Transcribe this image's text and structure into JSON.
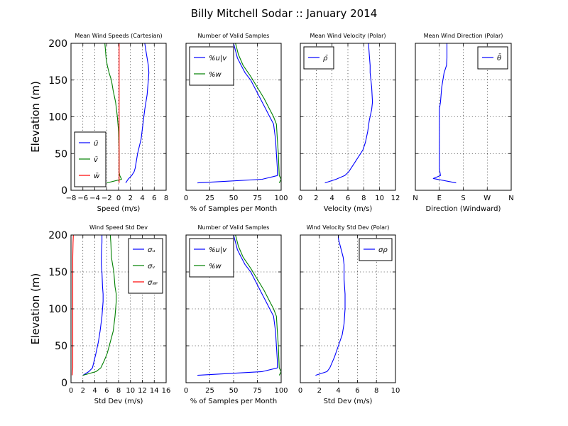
{
  "figure": {
    "suptitle": "Billy Mitchell Sodar :: January 2014"
  },
  "colors": {
    "blue": "#0000ff",
    "green": "#008000",
    "red": "#ff0000"
  },
  "chart_data": [
    {
      "type": "line",
      "title": "Mean Wind Speeds (Cartesian)",
      "xlabel": "Speed (m/s)",
      "ylabel": "Elevation (m)",
      "xlim": [
        -8,
        8
      ],
      "ylim": [
        0,
        200
      ],
      "xticks": [
        -8,
        -6,
        -4,
        -2,
        0,
        2,
        4,
        6,
        8
      ],
      "xticklabels": [
        "−8",
        "−6",
        "−4",
        "−2",
        "0",
        "2",
        "4",
        "6",
        "8"
      ],
      "yticks": [
        0,
        50,
        100,
        150,
        200
      ],
      "yticklabels": [
        "0",
        "50",
        "100",
        "150",
        "200"
      ],
      "grid": true,
      "legend_loc": "lower-left",
      "series": [
        {
          "name": "ū",
          "color": "#0000ff",
          "x": [
            1.2,
            1.6,
            2.2,
            2.6,
            2.8,
            3.0,
            3.2,
            3.5,
            3.8,
            4.1,
            4.4,
            4.8,
            5.0,
            5.1,
            5.0,
            4.8,
            4.6,
            4.4
          ],
          "y": [
            10,
            15,
            20,
            25,
            30,
            40,
            50,
            60,
            70,
            90,
            110,
            130,
            150,
            160,
            170,
            180,
            190,
            200
          ]
        },
        {
          "name": "v̄",
          "color": "#008000",
          "x": [
            -2.0,
            0.5,
            0.2,
            0.1,
            0.1,
            0.0,
            -0.2,
            -0.5,
            -0.9,
            -1.2,
            -1.6,
            -1.9,
            -2.1,
            -2.2,
            -2.3
          ],
          "y": [
            10,
            15,
            20,
            25,
            50,
            80,
            100,
            120,
            135,
            150,
            160,
            170,
            180,
            190,
            200
          ]
        },
        {
          "name": "w̄",
          "color": "#ff0000",
          "x": [
            0.1,
            0.1,
            0.1,
            0.1,
            0.1,
            0.1,
            0.1,
            0.1,
            0.1,
            0.1
          ],
          "y": [
            10,
            20,
            30,
            50,
            80,
            100,
            130,
            160,
            180,
            200
          ]
        }
      ]
    },
    {
      "type": "line",
      "title": "Number of Valid Samples",
      "xlabel": "% of Samples per Month",
      "ylabel": "",
      "xlim": [
        0,
        100
      ],
      "ylim": [
        0,
        200
      ],
      "xticks": [
        0,
        25,
        50,
        75,
        100
      ],
      "xticklabels": [
        "0",
        "25",
        "50",
        "75",
        "100"
      ],
      "yticks": [
        0,
        50,
        100,
        150,
        200
      ],
      "yticklabels": [],
      "grid": true,
      "legend_loc": "upper-left",
      "series": [
        {
          "name": "%u|v",
          "color": "#0000ff",
          "x": [
            12,
            80,
            96,
            96,
            95,
            94,
            92,
            88,
            84,
            80,
            74,
            68,
            62,
            58,
            54,
            52,
            50
          ],
          "y": [
            10,
            15,
            20,
            30,
            50,
            70,
            90,
            100,
            110,
            120,
            135,
            150,
            160,
            170,
            180,
            190,
            200
          ]
        },
        {
          "name": "%w",
          "color": "#008000",
          "x": [
            98,
            100,
            98,
            97,
            96,
            95,
            92,
            88,
            82,
            75,
            68,
            60,
            55,
            52
          ],
          "y": [
            10,
            15,
            20,
            50,
            70,
            90,
            100,
            110,
            125,
            140,
            155,
            170,
            185,
            200
          ]
        }
      ]
    },
    {
      "type": "line",
      "title": "Mean Wind Velocity (Polar)",
      "xlabel": "Velocity (m/s)",
      "ylabel": "",
      "xlim": [
        0,
        12
      ],
      "ylim": [
        0,
        200
      ],
      "xticks": [
        0,
        2,
        4,
        6,
        8,
        10,
        12
      ],
      "xticklabels": [
        "0",
        "2",
        "4",
        "6",
        "8",
        "10",
        "12"
      ],
      "yticks": [
        0,
        50,
        100,
        150,
        200
      ],
      "yticklabels": [],
      "grid": true,
      "legend_loc": "upper-left",
      "series": [
        {
          "name": "ρ̄",
          "color": "#0000ff",
          "x": [
            3.1,
            4.5,
            5.6,
            6.1,
            6.7,
            7.3,
            7.9,
            8.2,
            8.5,
            8.7,
            9.0,
            9.1,
            9.0,
            8.9,
            8.8,
            8.8,
            8.7,
            8.6
          ],
          "y": [
            10,
            15,
            20,
            25,
            35,
            45,
            55,
            65,
            80,
            95,
            110,
            120,
            140,
            150,
            160,
            170,
            185,
            200
          ]
        }
      ]
    },
    {
      "type": "line",
      "title": "Mean Wind Direction (Polar)",
      "xlabel": "Direction (Windward)",
      "ylabel": "",
      "xlim": [
        0,
        4
      ],
      "ylim": [
        0,
        200
      ],
      "xticks": [
        0,
        1,
        2,
        3,
        4
      ],
      "xticklabels": [
        "N",
        "E",
        "S",
        "W",
        "N"
      ],
      "yticks": [
        0,
        50,
        100,
        150,
        200
      ],
      "yticklabels": [],
      "grid": true,
      "legend_loc": "upper-right",
      "series": [
        {
          "name": "θ̄",
          "color": "#0000ff",
          "x": [
            1.7,
            0.75,
            1.05,
            1.0,
            1.0,
            1.0,
            1.0,
            1.0,
            1.05,
            1.1,
            1.2,
            1.3,
            1.32,
            1.32,
            1.32
          ],
          "y": [
            10,
            16,
            20,
            30,
            50,
            80,
            100,
            110,
            120,
            140,
            160,
            170,
            180,
            190,
            200
          ]
        }
      ]
    },
    {
      "type": "line",
      "title": "Wind Speed Std Dev",
      "xlabel": "Std Dev (m/s)",
      "ylabel": "Elevation (m)",
      "xlim": [
        0,
        16
      ],
      "ylim": [
        0,
        200
      ],
      "xticks": [
        0,
        2,
        4,
        6,
        8,
        10,
        12,
        14,
        16
      ],
      "xticklabels": [
        "0",
        "2",
        "4",
        "6",
        "8",
        "10",
        "12",
        "14",
        "16"
      ],
      "yticks": [
        0,
        50,
        100,
        150,
        200
      ],
      "yticklabels": [
        "0",
        "50",
        "100",
        "150",
        "200"
      ],
      "grid": true,
      "legend_loc": "upper-right",
      "series": [
        {
          "name": "σᵤ",
          "color": "#0000ff",
          "x": [
            2.0,
            3.0,
            3.6,
            3.9,
            4.2,
            4.6,
            4.9,
            5.2,
            5.4,
            5.4,
            5.3,
            5.2,
            5.1,
            5.1,
            5.2,
            5.2
          ],
          "y": [
            10,
            15,
            20,
            30,
            40,
            55,
            70,
            90,
            110,
            120,
            130,
            150,
            160,
            170,
            190,
            200
          ]
        },
        {
          "name": "σᵥ",
          "color": "#008000",
          "x": [
            2.0,
            4.2,
            5.0,
            5.6,
            6.1,
            6.6,
            7.1,
            7.4,
            7.6,
            7.6,
            7.4,
            7.2,
            7.0,
            6.8,
            6.7,
            6.6
          ],
          "y": [
            10,
            15,
            20,
            30,
            40,
            55,
            70,
            90,
            110,
            120,
            130,
            150,
            160,
            170,
            190,
            200
          ]
        },
        {
          "name": "σ𝓌",
          "color": "#ff0000",
          "x": [
            0.2,
            0.3,
            0.3,
            0.3,
            0.3,
            0.3,
            0.35,
            0.4
          ],
          "y": [
            10,
            20,
            50,
            100,
            140,
            170,
            190,
            200
          ]
        }
      ]
    },
    {
      "type": "line",
      "title": "Number of Valid Samples",
      "xlabel": "% of Samples per Month",
      "ylabel": "",
      "xlim": [
        0,
        100
      ],
      "ylim": [
        0,
        200
      ],
      "xticks": [
        0,
        25,
        50,
        75,
        100
      ],
      "xticklabels": [
        "0",
        "25",
        "50",
        "75",
        "100"
      ],
      "yticks": [
        0,
        50,
        100,
        150,
        200
      ],
      "yticklabels": [],
      "grid": true,
      "legend_loc": "upper-left",
      "series": [
        {
          "name": "%u|v",
          "color": "#0000ff",
          "x": [
            12,
            80,
            96,
            96,
            95,
            94,
            92,
            88,
            84,
            80,
            74,
            68,
            62,
            58,
            54,
            52,
            50
          ],
          "y": [
            10,
            15,
            20,
            30,
            50,
            70,
            90,
            100,
            110,
            120,
            135,
            150,
            160,
            170,
            180,
            190,
            200
          ]
        },
        {
          "name": "%w",
          "color": "#008000",
          "x": [
            98,
            100,
            98,
            97,
            96,
            95,
            92,
            88,
            82,
            75,
            68,
            60,
            55,
            52
          ],
          "y": [
            10,
            15,
            20,
            50,
            70,
            90,
            100,
            110,
            125,
            140,
            155,
            170,
            185,
            200
          ]
        }
      ]
    },
    {
      "type": "line",
      "title": "Wind Velocity Std Dev (Polar)",
      "xlabel": "Std Dev (m/s)",
      "ylabel": "",
      "xlim": [
        0,
        10
      ],
      "ylim": [
        0,
        200
      ],
      "xticks": [
        0,
        2,
        4,
        6,
        8,
        10
      ],
      "xticklabels": [
        "0",
        "2",
        "4",
        "6",
        "8",
        "10"
      ],
      "yticks": [
        0,
        50,
        100,
        150,
        200
      ],
      "yticklabels": [],
      "grid": true,
      "legend_loc": "upper-right",
      "series": [
        {
          "name": "σρ",
          "color": "#0000ff",
          "x": [
            1.6,
            2.8,
            3.1,
            3.6,
            4.0,
            4.4,
            4.6,
            4.7,
            4.7,
            4.6,
            4.6,
            4.5,
            4.3,
            4.1,
            4.0,
            4.0
          ],
          "y": [
            10,
            15,
            20,
            35,
            50,
            65,
            80,
            100,
            120,
            140,
            160,
            170,
            180,
            190,
            195,
            200
          ]
        }
      ]
    }
  ]
}
